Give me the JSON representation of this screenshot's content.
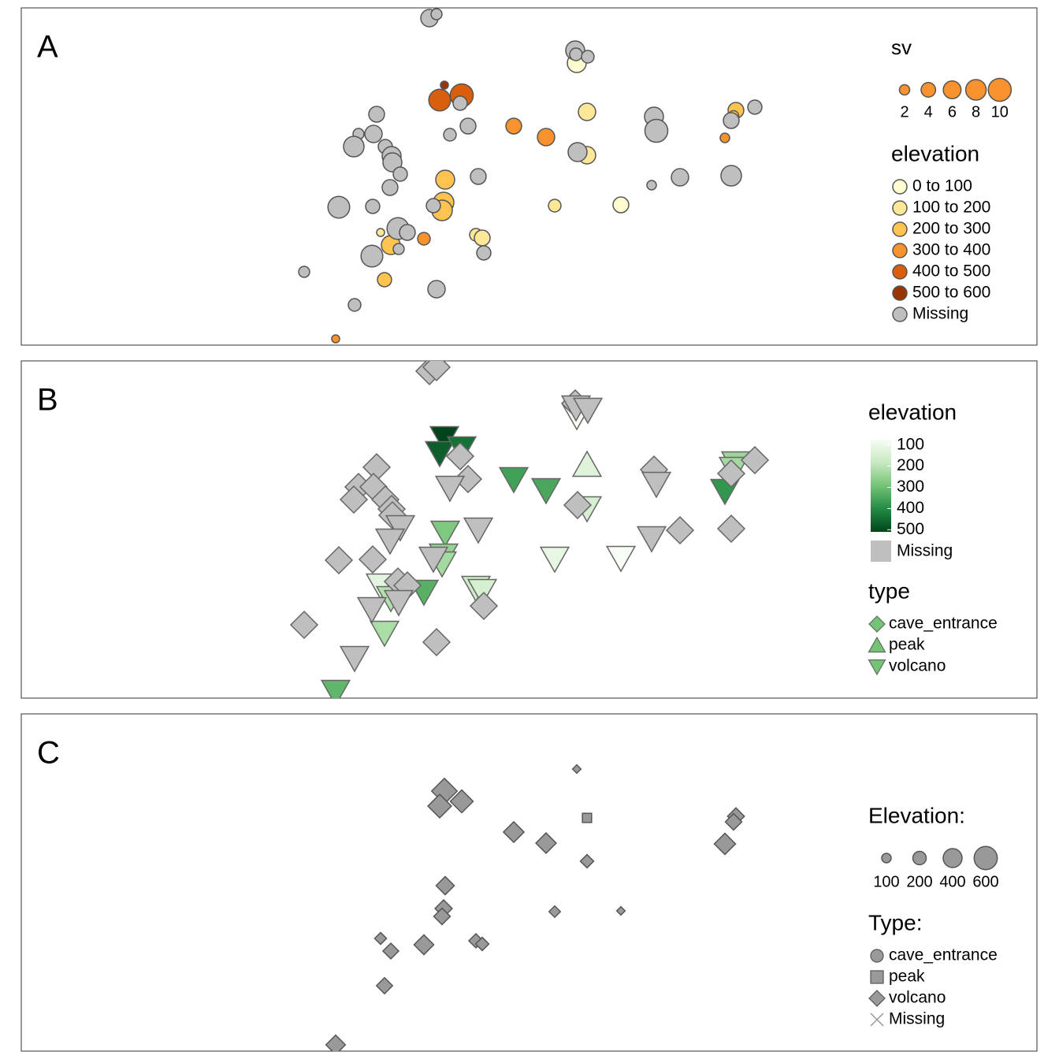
{
  "map": {
    "xlim": [
      0,
      1289
    ],
    "ylim": [
      0,
      428
    ]
  },
  "points": [
    {
      "x": 537,
      "y": 330,
      "sv": 1.2,
      "elevation": 550,
      "type": "volcano"
    },
    {
      "x": 531,
      "y": 311,
      "sv": 9,
      "elevation": 470,
      "type": "volcano"
    },
    {
      "x": 559,
      "y": 317,
      "sv": 10,
      "elevation": 440,
      "type": "volcano"
    },
    {
      "x": 625,
      "y": 278,
      "sv": 4.7,
      "elevation": 360,
      "type": "volcano"
    },
    {
      "x": 666,
      "y": 264,
      "sv": 5.7,
      "elevation": 350,
      "type": "volcano"
    },
    {
      "x": 718,
      "y": 296,
      "sv": 5.7,
      "elevation": 130,
      "type": "peak"
    },
    {
      "x": 705,
      "y": 358,
      "sv": 6.8,
      "elevation": 60,
      "type": "volcano"
    },
    {
      "x": 718,
      "y": 241,
      "sv": 5.7,
      "elevation": 150,
      "type": "volcano"
    },
    {
      "x": 907,
      "y": 298,
      "sv": 4.7,
      "elevation": 240,
      "type": "volcano"
    },
    {
      "x": 904,
      "y": 291,
      "sv": 2,
      "elevation": 230,
      "type": "volcano"
    },
    {
      "x": 893,
      "y": 263,
      "sv": 1.7,
      "elevation": 380,
      "type": "volcano"
    },
    {
      "x": 538,
      "y": 210,
      "sv": 6.8,
      "elevation": 280,
      "type": "volcano"
    },
    {
      "x": 536,
      "y": 181,
      "sv": 8,
      "elevation": 250,
      "type": "volcano"
    },
    {
      "x": 534,
      "y": 171,
      "sv": 8,
      "elevation": 230,
      "type": "volcano"
    },
    {
      "x": 677,
      "y": 177,
      "sv": 3,
      "elevation": 110,
      "type": "volcano"
    },
    {
      "x": 761,
      "y": 178,
      "sv": 4.7,
      "elevation": 60,
      "type": "volcano"
    },
    {
      "x": 456,
      "y": 143,
      "sv": 1.2,
      "elevation": 120,
      "type": "volcano"
    },
    {
      "x": 469,
      "y": 127,
      "sv": 6.8,
      "elevation": 210,
      "type": "volcano"
    },
    {
      "x": 511,
      "y": 135,
      "sv": 3,
      "elevation": 330,
      "type": "volcano"
    },
    {
      "x": 577,
      "y": 140,
      "sv": 3,
      "elevation": 170,
      "type": "volcano"
    },
    {
      "x": 585,
      "y": 136,
      "sv": 4.7,
      "elevation": 150,
      "type": "volcano"
    },
    {
      "x": 461,
      "y": 83,
      "sv": 3.8,
      "elevation": 220,
      "type": "volcano"
    },
    {
      "x": 399,
      "y": 8,
      "sv": 1.2,
      "elevation": 320,
      "type": "volcano"
    },
    {
      "x": 518,
      "y": 415,
      "sv": 5.7,
      "elevation": null,
      "type": "cave_entrance"
    },
    {
      "x": 527,
      "y": 420,
      "sv": 2.3,
      "elevation": null,
      "type": "cave_entrance"
    },
    {
      "x": 703,
      "y": 374,
      "sv": 6.8,
      "elevation": null,
      "type": "cave_entrance"
    },
    {
      "x": 704,
      "y": 369,
      "sv": 3,
      "elevation": null,
      "type": "volcano"
    },
    {
      "x": 719,
      "y": 366,
      "sv": 3,
      "elevation": null,
      "type": "volcano"
    },
    {
      "x": 451,
      "y": 293,
      "sv": 4.7,
      "elevation": null,
      "type": "cave_entrance"
    },
    {
      "x": 428,
      "y": 268,
      "sv": 2.3,
      "elevation": null,
      "type": "cave_entrance"
    },
    {
      "x": 447,
      "y": 268,
      "sv": 5.7,
      "elevation": null,
      "type": "cave_entrance"
    },
    {
      "x": 422,
      "y": 252,
      "sv": 8,
      "elevation": null,
      "type": "cave_entrance"
    },
    {
      "x": 462,
      "y": 252,
      "sv": 3.8,
      "elevation": null,
      "type": "cave_entrance"
    },
    {
      "x": 470,
      "y": 240,
      "sv": 6.8,
      "elevation": null,
      "type": "cave_entrance"
    },
    {
      "x": 471,
      "y": 232,
      "sv": 6.8,
      "elevation": null,
      "type": "cave_entrance"
    },
    {
      "x": 481,
      "y": 217,
      "sv": 3.8,
      "elevation": null,
      "type": "volcano"
    },
    {
      "x": 468,
      "y": 200,
      "sv": 4.7,
      "elevation": null,
      "type": "volcano"
    },
    {
      "x": 403,
      "y": 175,
      "sv": 9,
      "elevation": null,
      "type": "cave_entrance"
    },
    {
      "x": 446,
      "y": 176,
      "sv": 3.8,
      "elevation": null,
      "type": "cave_entrance"
    },
    {
      "x": 523,
      "y": 177,
      "sv": 3.8,
      "elevation": null,
      "type": "volcano"
    },
    {
      "x": 478,
      "y": 148,
      "sv": 9,
      "elevation": null,
      "type": "cave_entrance"
    },
    {
      "x": 490,
      "y": 143,
      "sv": 4.7,
      "elevation": null,
      "type": "cave_entrance"
    },
    {
      "x": 445,
      "y": 113,
      "sv": 9,
      "elevation": null,
      "type": "volcano"
    },
    {
      "x": 479,
      "y": 122,
      "sv": 2.3,
      "elevation": null,
      "type": "volcano"
    },
    {
      "x": 359,
      "y": 93,
      "sv": 2.3,
      "elevation": null,
      "type": "cave_entrance"
    },
    {
      "x": 423,
      "y": 51,
      "sv": 3,
      "elevation": null,
      "type": "volcano"
    },
    {
      "x": 527,
      "y": 71,
      "sv": 5.7,
      "elevation": null,
      "type": "cave_entrance"
    },
    {
      "x": 567,
      "y": 278,
      "sv": 4.7,
      "elevation": null,
      "type": "cave_entrance"
    },
    {
      "x": 544,
      "y": 267,
      "sv": 3,
      "elevation": null,
      "type": "volcano"
    },
    {
      "x": 557,
      "y": 307,
      "sv": 3.8,
      "elevation": null,
      "type": "cave_entrance"
    },
    {
      "x": 580,
      "y": 214,
      "sv": 4.7,
      "elevation": null,
      "type": "volcano"
    },
    {
      "x": 587,
      "y": 117,
      "sv": 3.8,
      "elevation": null,
      "type": "cave_entrance"
    },
    {
      "x": 706,
      "y": 245,
      "sv": 6.8,
      "elevation": null,
      "type": "cave_entrance"
    },
    {
      "x": 803,
      "y": 290,
      "sv": 6.8,
      "elevation": null,
      "type": "cave_entrance"
    },
    {
      "x": 806,
      "y": 272,
      "sv": 10,
      "elevation": null,
      "type": "volcano"
    },
    {
      "x": 800,
      "y": 203,
      "sv": 1.7,
      "elevation": null,
      "type": "volcano"
    },
    {
      "x": 836,
      "y": 213,
      "sv": 5.7,
      "elevation": null,
      "type": "cave_entrance"
    },
    {
      "x": 901,
      "y": 215,
      "sv": 8,
      "elevation": null,
      "type": "cave_entrance"
    },
    {
      "x": 901,
      "y": 285,
      "sv": 4.7,
      "elevation": null,
      "type": "cave_entrance"
    },
    {
      "x": 931,
      "y": 302,
      "sv": 3.8,
      "elevation": null,
      "type": "cave_entrance"
    }
  ],
  "panels": [
    {
      "label": "A",
      "size_legend": {
        "title": "sv",
        "values": [
          2,
          4,
          6,
          8,
          10
        ]
      },
      "color_legend": {
        "title": "elevation",
        "breaks": [
          0,
          100,
          200,
          300,
          400,
          500,
          600
        ],
        "labels": [
          "0 to 100",
          "100 to 200",
          "200 to 300",
          "300 to 400",
          "400 to 500",
          "500 to 600"
        ],
        "colors": [
          "#fffdd0",
          "#fee898",
          "#fec44f",
          "#f7922e",
          "#d95f0e",
          "#993404"
        ],
        "missing": "Missing",
        "missing_color": "#bfbfbf"
      }
    },
    {
      "label": "B",
      "color_legend": {
        "title": "elevation",
        "lim": [
          75,
          510
        ],
        "ticks": [
          100,
          200,
          300,
          400,
          500
        ],
        "colors": [
          "#f7fcf5",
          "#c7e9c0",
          "#74c476",
          "#238b45",
          "#00441b"
        ],
        "missing": "Missing",
        "missing_color": "#bfbfbf"
      },
      "shape_legend": {
        "title": "type",
        "labels": [
          "cave_entrance",
          "peak",
          "volcano"
        ],
        "color": "#74c476"
      }
    },
    {
      "label": "C",
      "size_legend": {
        "title": "Elevation:",
        "values": [
          100,
          200,
          400,
          600
        ]
      },
      "shape_legend": {
        "title": "Type:",
        "labels": [
          "cave_entrance",
          "peak",
          "volcano",
          "Missing"
        ],
        "color": "#999999"
      }
    }
  ]
}
